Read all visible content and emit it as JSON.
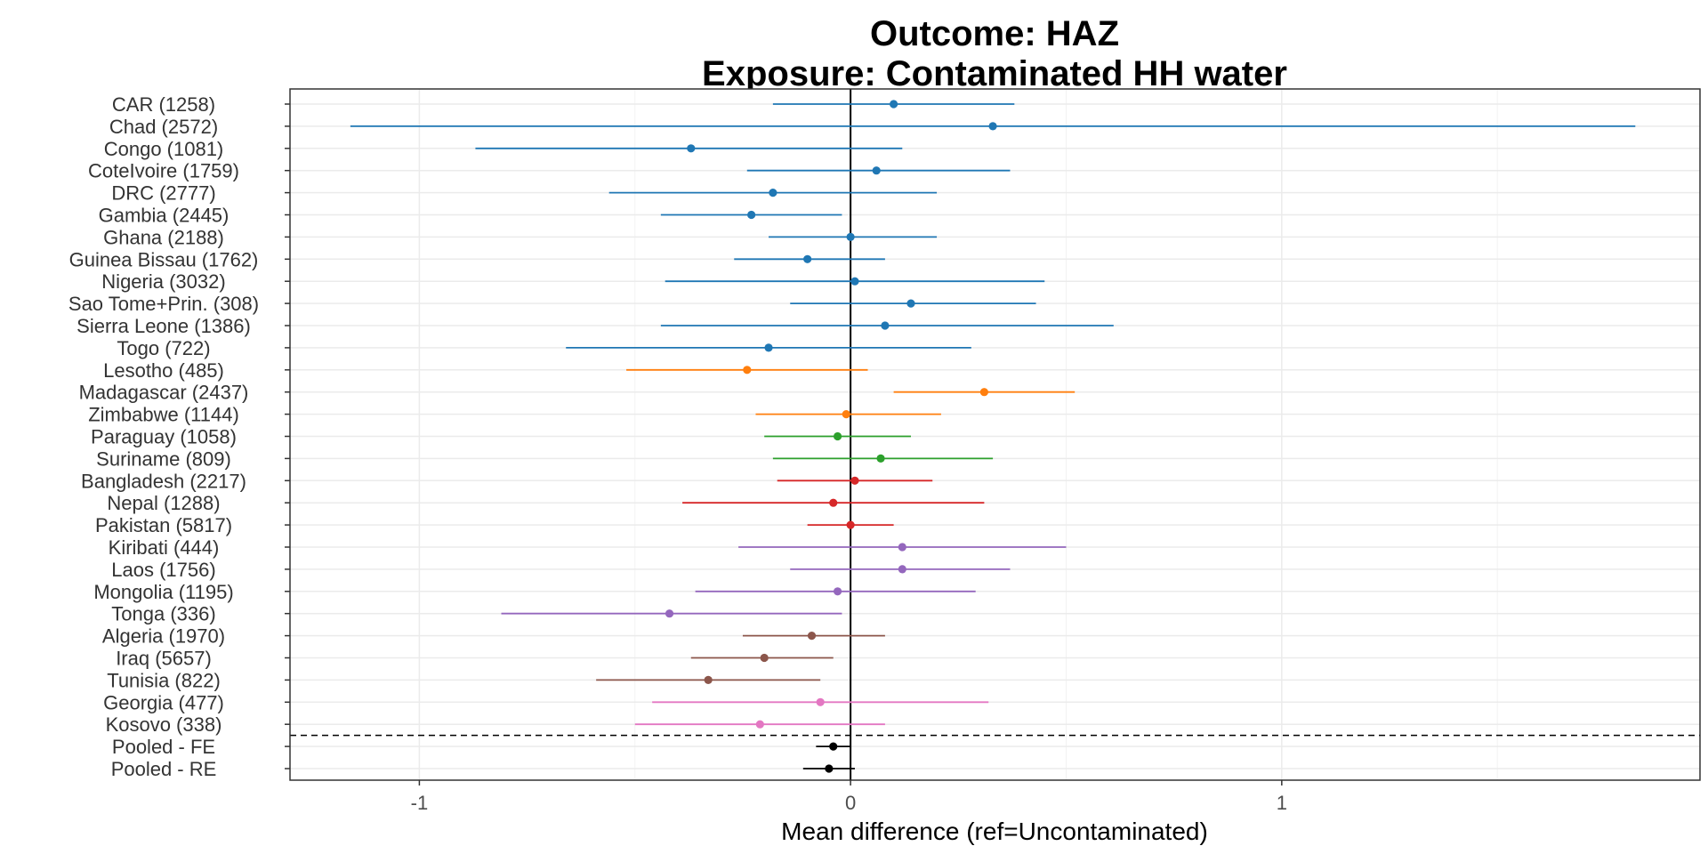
{
  "chart_data": {
    "type": "forest",
    "title": "Outcome: HAZ",
    "subtitle": "Exposure: Contaminated HH water",
    "xlabel": "Mean difference (ref=Uncontaminated)",
    "xlim": [
      -1.3,
      1.97
    ],
    "x_ticks": [
      -1,
      0,
      1
    ],
    "x_tick_labels": [
      "-1",
      "0",
      "1"
    ],
    "reference_line": 0,
    "grid": true,
    "colors": {
      "blue": "#1f77b4",
      "orange": "#ff7f0e",
      "green": "#2ca02c",
      "red": "#d62728",
      "purple": "#9467bd",
      "brown": "#8c564b",
      "pink": "#e377c2",
      "black": "#000000"
    },
    "rows": [
      {
        "label": "CAR (1258)",
        "est": 0.1,
        "lo": -0.18,
        "hi": 0.38,
        "color": "blue"
      },
      {
        "label": "Chad (2572)",
        "est": 0.33,
        "lo": -1.16,
        "hi": 1.82,
        "color": "blue"
      },
      {
        "label": "Congo (1081)",
        "est": -0.37,
        "lo": -0.87,
        "hi": 0.12,
        "color": "blue"
      },
      {
        "label": "CoteIvoire (1759)",
        "est": 0.06,
        "lo": -0.24,
        "hi": 0.37,
        "color": "blue"
      },
      {
        "label": "DRC (2777)",
        "est": -0.18,
        "lo": -0.56,
        "hi": 0.2,
        "color": "blue"
      },
      {
        "label": "Gambia (2445)",
        "est": -0.23,
        "lo": -0.44,
        "hi": -0.02,
        "color": "blue"
      },
      {
        "label": "Ghana (2188)",
        "est": 0.0,
        "lo": -0.19,
        "hi": 0.2,
        "color": "blue"
      },
      {
        "label": "Guinea Bissau (1762)",
        "est": -0.1,
        "lo": -0.27,
        "hi": 0.08,
        "color": "blue"
      },
      {
        "label": "Nigeria (3032)",
        "est": 0.01,
        "lo": -0.43,
        "hi": 0.45,
        "color": "blue"
      },
      {
        "label": "Sao Tome+Prin. (308)",
        "est": 0.14,
        "lo": -0.14,
        "hi": 0.43,
        "color": "blue"
      },
      {
        "label": "Sierra Leone (1386)",
        "est": 0.08,
        "lo": -0.44,
        "hi": 0.61,
        "color": "blue"
      },
      {
        "label": "Togo (722)",
        "est": -0.19,
        "lo": -0.66,
        "hi": 0.28,
        "color": "blue"
      },
      {
        "label": "Lesotho (485)",
        "est": -0.24,
        "lo": -0.52,
        "hi": 0.04,
        "color": "orange"
      },
      {
        "label": "Madagascar (2437)",
        "est": 0.31,
        "lo": 0.1,
        "hi": 0.52,
        "color": "orange"
      },
      {
        "label": "Zimbabwe (1144)",
        "est": -0.01,
        "lo": -0.22,
        "hi": 0.21,
        "color": "orange"
      },
      {
        "label": "Paraguay (1058)",
        "est": -0.03,
        "lo": -0.2,
        "hi": 0.14,
        "color": "green"
      },
      {
        "label": "Suriname (809)",
        "est": 0.07,
        "lo": -0.18,
        "hi": 0.33,
        "color": "green"
      },
      {
        "label": "Bangladesh (2217)",
        "est": 0.01,
        "lo": -0.17,
        "hi": 0.19,
        "color": "red"
      },
      {
        "label": "Nepal (1288)",
        "est": -0.04,
        "lo": -0.39,
        "hi": 0.31,
        "color": "red"
      },
      {
        "label": "Pakistan (5817)",
        "est": 0.0,
        "lo": -0.1,
        "hi": 0.1,
        "color": "red"
      },
      {
        "label": "Kiribati (444)",
        "est": 0.12,
        "lo": -0.26,
        "hi": 0.5,
        "color": "purple"
      },
      {
        "label": "Laos (1756)",
        "est": 0.12,
        "lo": -0.14,
        "hi": 0.37,
        "color": "purple"
      },
      {
        "label": "Mongolia (1195)",
        "est": -0.03,
        "lo": -0.36,
        "hi": 0.29,
        "color": "purple"
      },
      {
        "label": "Tonga (336)",
        "est": -0.42,
        "lo": -0.81,
        "hi": -0.02,
        "color": "purple"
      },
      {
        "label": "Algeria (1970)",
        "est": -0.09,
        "lo": -0.25,
        "hi": 0.08,
        "color": "brown"
      },
      {
        "label": "Iraq (5657)",
        "est": -0.2,
        "lo": -0.37,
        "hi": -0.04,
        "color": "brown"
      },
      {
        "label": "Tunisia (822)",
        "est": -0.33,
        "lo": -0.59,
        "hi": -0.07,
        "color": "brown"
      },
      {
        "label": "Georgia (477)",
        "est": -0.07,
        "lo": -0.46,
        "hi": 0.32,
        "color": "pink"
      },
      {
        "label": "Kosovo (338)",
        "est": -0.21,
        "lo": -0.5,
        "hi": 0.08,
        "color": "pink"
      },
      {
        "label": "Pooled - FE",
        "est": -0.04,
        "lo": -0.08,
        "hi": 0.0,
        "color": "black"
      },
      {
        "label": "Pooled - RE",
        "est": -0.05,
        "lo": -0.11,
        "hi": 0.01,
        "color": "black"
      }
    ],
    "separator_after_row": 29
  }
}
